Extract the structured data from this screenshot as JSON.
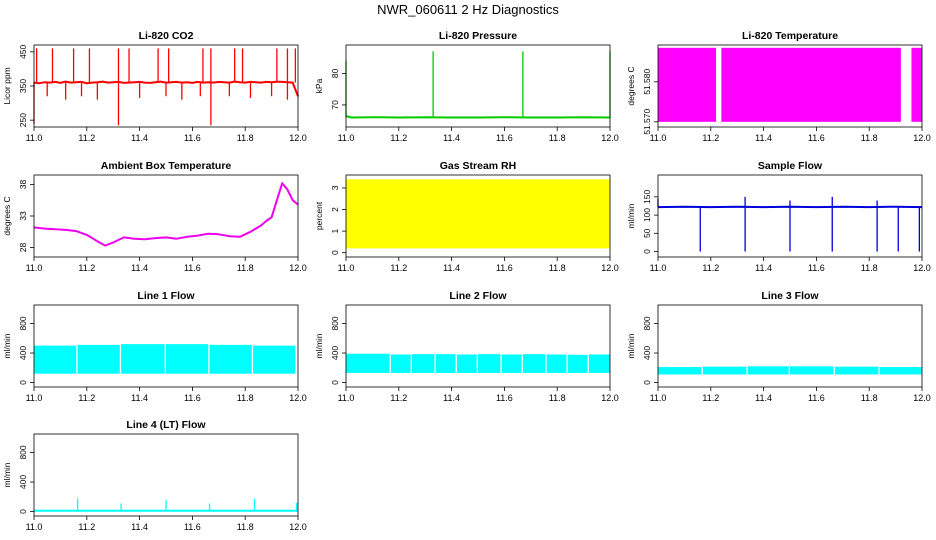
{
  "figure_title": "NWR_060611 2 Hz Diagnostics",
  "chart_data": [
    {
      "type": "line",
      "title": "Li-820 CO2",
      "xlabel": "",
      "ylabel": "Licor ppm",
      "xlim": [
        11.0,
        12.0
      ],
      "ylim": [
        230,
        470
      ],
      "xticks": [
        11.0,
        11.2,
        11.4,
        11.6,
        11.8,
        12.0
      ],
      "xtick_labels": [
        "11.0",
        "11.2",
        "11.4",
        "11.6",
        "11.8",
        "12.0"
      ],
      "yticks": [
        250,
        350,
        450
      ],
      "ytick_labels": [
        "250",
        "350",
        "450"
      ],
      "color": "#ff0000",
      "series": [
        {
          "render": "line",
          "x": [
            11.0,
            11.02,
            11.04,
            11.06,
            11.08,
            11.1,
            11.12,
            11.14,
            11.16,
            11.18,
            11.2,
            11.22,
            11.24,
            11.26,
            11.28,
            11.3,
            11.32,
            11.34,
            11.36,
            11.38,
            11.4,
            11.42,
            11.44,
            11.46,
            11.48,
            11.5,
            11.52,
            11.54,
            11.56,
            11.58,
            11.6,
            11.62,
            11.64,
            11.66,
            11.68,
            11.7,
            11.72,
            11.74,
            11.76,
            11.78,
            11.8,
            11.82,
            11.84,
            11.86,
            11.88,
            11.9,
            11.92,
            11.94,
            11.96,
            11.98,
            12.0
          ],
          "y": [
            360,
            358,
            361,
            360,
            362,
            359,
            363,
            360,
            361,
            362,
            358,
            360,
            361,
            363,
            360,
            361,
            362,
            359,
            360,
            361,
            362,
            360,
            359,
            361,
            363,
            360,
            361,
            362,
            360,
            361,
            359,
            362,
            360,
            361,
            360,
            362,
            361,
            360,
            363,
            361,
            360,
            362,
            361,
            360,
            362,
            361,
            363,
            362,
            361,
            360,
            320
          ]
        },
        {
          "render": "vlines",
          "x": [
            11.01,
            11.07,
            11.15,
            11.21,
            11.32,
            11.36,
            11.47,
            11.51,
            11.64,
            11.67,
            11.76,
            11.79,
            11.92,
            11.96,
            11.99
          ],
          "y0": [
            360,
            360,
            360,
            360,
            360,
            360,
            360,
            360,
            360,
            360,
            360,
            360,
            360,
            360,
            360
          ],
          "y1": [
            460,
            460,
            460,
            460,
            460,
            460,
            460,
            460,
            460,
            460,
            460,
            460,
            460,
            460,
            460
          ]
        },
        {
          "render": "vlines",
          "x": [
            11.0,
            11.05,
            11.12,
            11.18,
            11.24,
            11.32,
            11.4,
            11.5,
            11.56,
            11.63,
            11.67,
            11.74,
            11.82,
            11.9,
            11.96
          ],
          "y0": [
            360,
            360,
            360,
            360,
            360,
            360,
            360,
            360,
            360,
            360,
            360,
            360,
            360,
            360,
            360
          ],
          "y1": [
            240,
            320,
            310,
            320,
            310,
            235,
            315,
            320,
            310,
            320,
            235,
            320,
            315,
            320,
            310
          ]
        }
      ]
    },
    {
      "type": "line",
      "title": "Li-820 Pressure",
      "xlabel": "",
      "ylabel": "kPa",
      "xlim": [
        11.0,
        12.0
      ],
      "ylim": [
        63,
        89
      ],
      "xticks": [
        11.0,
        11.2,
        11.4,
        11.6,
        11.8,
        12.0
      ],
      "xtick_labels": [
        "11.0",
        "11.2",
        "11.4",
        "11.6",
        "11.8",
        "12.0"
      ],
      "yticks": [
        70,
        80
      ],
      "ytick_labels": [
        "70",
        "80"
      ],
      "color": "#00cc00",
      "series": [
        {
          "render": "line",
          "x": [
            11.0,
            11.02,
            11.1,
            11.2,
            11.3,
            11.4,
            11.5,
            11.6,
            11.7,
            11.8,
            11.9,
            12.0
          ],
          "y": [
            66.5,
            66.0,
            66.1,
            66.0,
            66.1,
            66.0,
            66.0,
            66.1,
            66.0,
            66.0,
            66.1,
            66.0
          ]
        },
        {
          "render": "vlines",
          "x": [
            11.0,
            11.33,
            11.67,
            12.0
          ],
          "y0": [
            66,
            66,
            66,
            66
          ],
          "y1": [
            84,
            87,
            87,
            87
          ]
        }
      ]
    },
    {
      "type": "area",
      "title": "Li-820 Temperature",
      "xlabel": "",
      "ylabel": "degrees C",
      "xlim": [
        11.0,
        12.0
      ],
      "ylim": [
        51.5687,
        51.5892
      ],
      "xticks": [
        11.0,
        11.2,
        11.4,
        11.6,
        11.8,
        12.0
      ],
      "xtick_labels": [
        "11.0",
        "11.2",
        "11.4",
        "11.6",
        "11.8",
        "12.0"
      ],
      "yticks": [
        51.57,
        51.58
      ],
      "ytick_labels": [
        "51.570",
        "51.580"
      ],
      "color": "#ff00ff",
      "series": [
        {
          "render": "band",
          "x0": [
            11.0,
            11.24,
            11.96
          ],
          "x1": [
            11.22,
            11.92,
            12.0
          ],
          "y0": [
            51.57,
            51.57,
            51.57
          ],
          "y1": [
            51.5885,
            51.5885,
            51.5885
          ]
        }
      ]
    },
    {
      "type": "line",
      "title": "Ambient Box Temperature",
      "xlabel": "",
      "ylabel": "degrees C",
      "xlim": [
        11.0,
        12.0
      ],
      "ylim": [
        26.5,
        39.5
      ],
      "xticks": [
        11.0,
        11.2,
        11.4,
        11.6,
        11.8,
        12.0
      ],
      "xtick_labels": [
        "11.0",
        "11.2",
        "11.4",
        "11.6",
        "11.8",
        "12.0"
      ],
      "yticks": [
        28,
        33,
        38
      ],
      "ytick_labels": [
        "28",
        "33",
        "38"
      ],
      "color": "#ee00ee",
      "series": [
        {
          "render": "line",
          "x": [
            11.0,
            11.04,
            11.08,
            11.12,
            11.16,
            11.2,
            11.24,
            11.27,
            11.3,
            11.34,
            11.38,
            11.42,
            11.46,
            11.5,
            11.54,
            11.58,
            11.62,
            11.66,
            11.7,
            11.74,
            11.78,
            11.82,
            11.86,
            11.88,
            11.9,
            11.92,
            11.94,
            11.96,
            11.98,
            12.0
          ],
          "y": [
            31.2,
            31.0,
            30.9,
            30.8,
            30.6,
            30.0,
            29.0,
            28.3,
            28.8,
            29.6,
            29.4,
            29.3,
            29.5,
            29.6,
            29.4,
            29.7,
            29.9,
            30.2,
            30.1,
            29.8,
            29.7,
            30.5,
            31.5,
            32.2,
            32.8,
            35.5,
            38.2,
            37.2,
            35.5,
            34.8
          ]
        }
      ]
    },
    {
      "type": "area",
      "title": "Gas Stream RH",
      "xlabel": "",
      "ylabel": "percent",
      "xlim": [
        11.0,
        12.0
      ],
      "ylim": [
        -0.2,
        3.6
      ],
      "xticks": [
        11.0,
        11.2,
        11.4,
        11.6,
        11.8,
        12.0
      ],
      "xtick_labels": [
        "11.0",
        "11.2",
        "11.4",
        "11.6",
        "11.8",
        "12.0"
      ],
      "yticks": [
        0,
        1,
        2,
        3
      ],
      "ytick_labels": [
        "0",
        "1",
        "2",
        "3"
      ],
      "color": "#ffff00",
      "series": [
        {
          "render": "band",
          "x0": [
            11.0
          ],
          "x1": [
            12.0
          ],
          "y0": [
            0.2
          ],
          "y1": [
            3.4
          ]
        }
      ]
    },
    {
      "type": "line",
      "title": "Sample Flow",
      "xlabel": "",
      "ylabel": "ml/min",
      "xlim": [
        11.0,
        12.0
      ],
      "ylim": [
        -15,
        210
      ],
      "xticks": [
        11.0,
        11.2,
        11.4,
        11.6,
        11.8,
        12.0
      ],
      "xtick_labels": [
        "11.0",
        "11.2",
        "11.4",
        "11.6",
        "11.8",
        "12.0"
      ],
      "yticks": [
        0,
        50,
        100,
        150
      ],
      "ytick_labels": [
        "0",
        "50",
        "100",
        "150"
      ],
      "color": "#0000dd",
      "series": [
        {
          "render": "line",
          "x": [
            11.0,
            11.1,
            11.2,
            11.3,
            11.4,
            11.5,
            11.6,
            11.7,
            11.8,
            11.9,
            12.0
          ],
          "y": [
            122,
            123,
            122,
            123,
            122,
            123,
            122,
            123,
            122,
            123,
            122
          ]
        },
        {
          "render": "vlines",
          "x": [
            11.16,
            11.33,
            11.5,
            11.66,
            11.83,
            11.91,
            11.99
          ],
          "y0": [
            122,
            122,
            122,
            122,
            122,
            122,
            122
          ],
          "y1": [
            0,
            0,
            0,
            0,
            0,
            0,
            0
          ]
        },
        {
          "render": "vlines",
          "x": [
            11.0,
            11.33,
            11.5,
            11.66,
            11.83
          ],
          "y0": [
            122,
            122,
            122,
            122,
            122
          ],
          "y1": [
            145,
            150,
            140,
            150,
            140
          ]
        }
      ]
    },
    {
      "type": "area",
      "title": "Line 1 Flow",
      "xlabel": "",
      "ylabel": "ml/min",
      "xlim": [
        11.0,
        12.0
      ],
      "ylim": [
        -60,
        1050
      ],
      "xticks": [
        11.0,
        11.2,
        11.4,
        11.6,
        11.8,
        12.0
      ],
      "xtick_labels": [
        "11.0",
        "11.2",
        "11.4",
        "11.6",
        "11.8",
        "12.0"
      ],
      "yticks": [
        0,
        400,
        800
      ],
      "ytick_labels": [
        "0",
        "400",
        "800"
      ],
      "color": "#00ffff",
      "series": [
        {
          "render": "band",
          "x0": [
            11.0,
            11.165,
            11.33,
            11.5,
            11.665,
            11.83
          ],
          "x1": [
            11.16,
            11.325,
            11.495,
            11.66,
            11.825,
            11.99
          ],
          "y0": [
            120,
            120,
            120,
            120,
            120,
            120
          ],
          "y1": [
            500,
            510,
            520,
            520,
            510,
            500
          ]
        }
      ]
    },
    {
      "type": "area",
      "title": "Line 2 Flow",
      "xlabel": "",
      "ylabel": "ml/min",
      "xlim": [
        11.0,
        12.0
      ],
      "ylim": [
        -60,
        1050
      ],
      "xticks": [
        11.0,
        11.2,
        11.4,
        11.6,
        11.8,
        12.0
      ],
      "xtick_labels": [
        "11.0",
        "11.2",
        "11.4",
        "11.6",
        "11.8",
        "12.0"
      ],
      "yticks": [
        0,
        400,
        800
      ],
      "ytick_labels": [
        "0",
        "400",
        "800"
      ],
      "color": "#00ffff",
      "series": [
        {
          "render": "band",
          "x0": [
            11.0,
            11.17,
            11.25,
            11.34,
            11.42,
            11.5,
            11.59,
            11.67,
            11.76,
            11.84,
            11.92
          ],
          "x1": [
            11.165,
            11.245,
            11.335,
            11.415,
            11.495,
            11.585,
            11.665,
            11.755,
            11.835,
            11.915,
            12.0
          ],
          "y0": [
            130,
            130,
            130,
            130,
            130,
            130,
            130,
            130,
            130,
            130,
            130
          ],
          "y1": [
            390,
            380,
            385,
            385,
            380,
            385,
            380,
            385,
            380,
            375,
            380
          ]
        }
      ]
    },
    {
      "type": "area",
      "title": "Line 3 Flow",
      "xlabel": "",
      "ylabel": "ml/min",
      "xlim": [
        11.0,
        12.0
      ],
      "ylim": [
        -60,
        1050
      ],
      "xticks": [
        11.0,
        11.2,
        11.4,
        11.6,
        11.8,
        12.0
      ],
      "xtick_labels": [
        "11.0",
        "11.2",
        "11.4",
        "11.6",
        "11.8",
        "12.0"
      ],
      "yticks": [
        0,
        400,
        800
      ],
      "ytick_labels": [
        "0",
        "400",
        "800"
      ],
      "color": "#00ffff",
      "series": [
        {
          "render": "band",
          "x0": [
            11.0,
            11.17,
            11.34,
            11.5,
            11.67,
            11.84
          ],
          "x1": [
            11.165,
            11.335,
            11.495,
            11.665,
            11.835,
            12.0
          ],
          "y0": [
            110,
            110,
            110,
            110,
            110,
            110
          ],
          "y1": [
            210,
            215,
            220,
            220,
            215,
            210
          ]
        }
      ]
    },
    {
      "type": "line",
      "title": "Line 4 (LT) Flow",
      "xlabel": "",
      "ylabel": "ml/min",
      "xlim": [
        11.0,
        12.0
      ],
      "ylim": [
        -60,
        1050
      ],
      "xticks": [
        11.0,
        11.2,
        11.4,
        11.6,
        11.8,
        12.0
      ],
      "xtick_labels": [
        "11.0",
        "11.2",
        "11.4",
        "11.6",
        "11.8",
        "12.0"
      ],
      "yticks": [
        0,
        400,
        800
      ],
      "ytick_labels": [
        "0",
        "400",
        "800"
      ],
      "color": "#00ffff",
      "series": [
        {
          "render": "line",
          "x": [
            11.0,
            11.2,
            11.4,
            11.6,
            11.8,
            12.0
          ],
          "y": [
            10,
            10,
            10,
            10,
            10,
            10
          ]
        },
        {
          "render": "vlines",
          "x": [
            11.165,
            11.33,
            11.5,
            11.665,
            11.835,
            11.995
          ],
          "y0": [
            10,
            10,
            10,
            10,
            10,
            10
          ],
          "y1": [
            180,
            110,
            160,
            110,
            175,
            120
          ]
        }
      ]
    }
  ]
}
